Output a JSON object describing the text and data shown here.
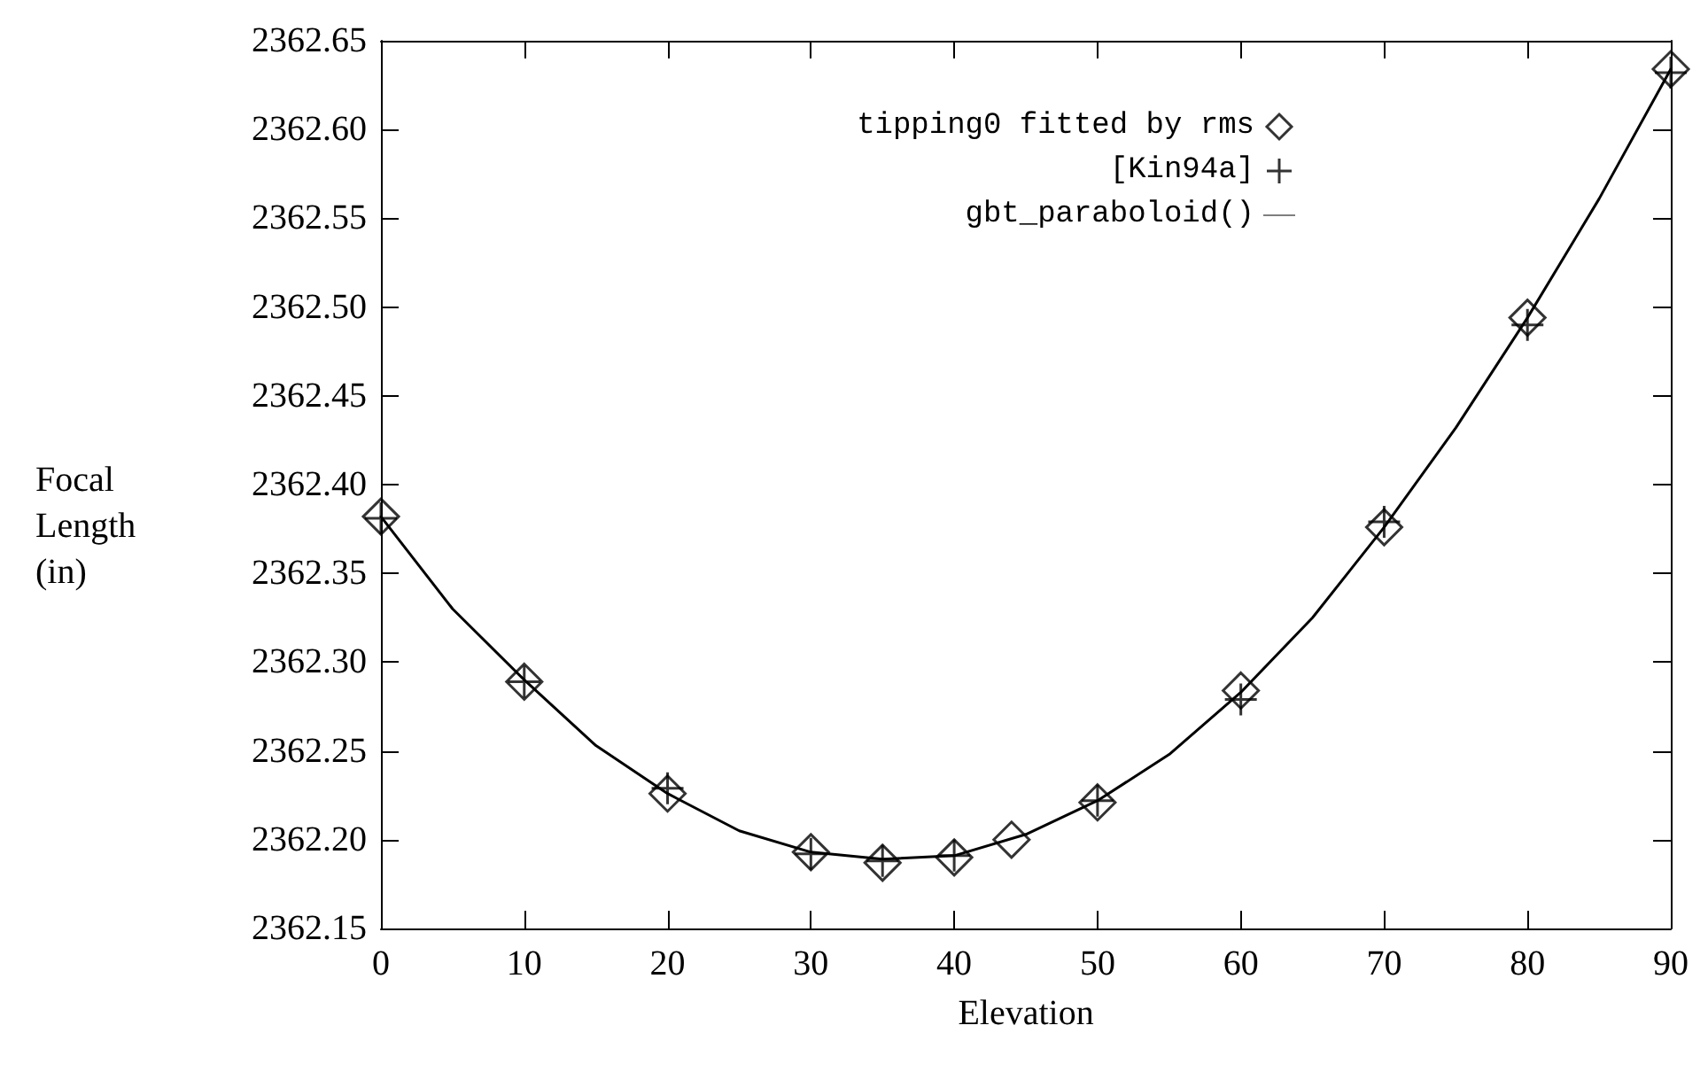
{
  "chart_data": {
    "type": "scatter",
    "xlabel": "Elevation",
    "ylabel": "Focal\nLength\n(in)",
    "xlim": [
      0,
      90
    ],
    "xticks": [
      0,
      10,
      20,
      30,
      40,
      50,
      60,
      70,
      80,
      90
    ],
    "ylim": [
      2362.15,
      2362.65
    ],
    "yticks": [
      {
        "value": 2362.15,
        "label": "2362.15"
      },
      {
        "value": 2362.2,
        "label": "2362.20"
      },
      {
        "value": 2362.25,
        "label": "2362.25"
      },
      {
        "value": 2362.3,
        "label": "2362.30"
      },
      {
        "value": 2362.35,
        "label": "2362.35"
      },
      {
        "value": 2362.4,
        "label": "2362.40"
      },
      {
        "value": 2362.45,
        "label": "2362.45"
      },
      {
        "value": 2362.5,
        "label": "2362.50"
      },
      {
        "value": 2362.55,
        "label": "2362.55"
      },
      {
        "value": 2362.6,
        "label": "2362.60"
      },
      {
        "value": 2362.65,
        "label": "2362.65"
      }
    ],
    "grid": false,
    "legend": "top right",
    "series": [
      {
        "name": "tipping0 fitted by rms",
        "marker": "diamond",
        "color": "#000000",
        "x": [
          0,
          10,
          20,
          30,
          35,
          40,
          44,
          50,
          60,
          70,
          80,
          90
        ],
        "values": [
          2362.382,
          2362.289,
          2362.226,
          2362.193,
          2362.187,
          2362.19,
          2362.2,
          2362.221,
          2362.284,
          2362.376,
          2362.494,
          2362.634
        ]
      },
      {
        "name": "[Kin94a]",
        "marker": "cross",
        "color": "#000000",
        "x": [
          0,
          10,
          20,
          30,
          35,
          40,
          50,
          60,
          70,
          80,
          90
        ],
        "values": [
          2362.381,
          2362.289,
          2362.229,
          2362.192,
          2362.188,
          2362.191,
          2362.222,
          2362.279,
          2362.379,
          2362.49,
          2362.632
        ]
      },
      {
        "name": "gbt_paraboloid()",
        "type": "line",
        "marker": "none",
        "line_style": "solid",
        "color": "#000000",
        "x": [
          0,
          5,
          10,
          15,
          20,
          25,
          30,
          35,
          40,
          45,
          50,
          55,
          60,
          65,
          70,
          75,
          80,
          85,
          90
        ],
        "values": [
          2362.382,
          2362.33,
          2362.29,
          2362.253,
          2362.226,
          2362.205,
          2362.193,
          2362.189,
          2362.191,
          2362.203,
          2362.222,
          2362.248,
          2362.283,
          2362.325,
          2362.376,
          2362.432,
          2362.494,
          2362.561,
          2362.634
        ]
      }
    ]
  }
}
